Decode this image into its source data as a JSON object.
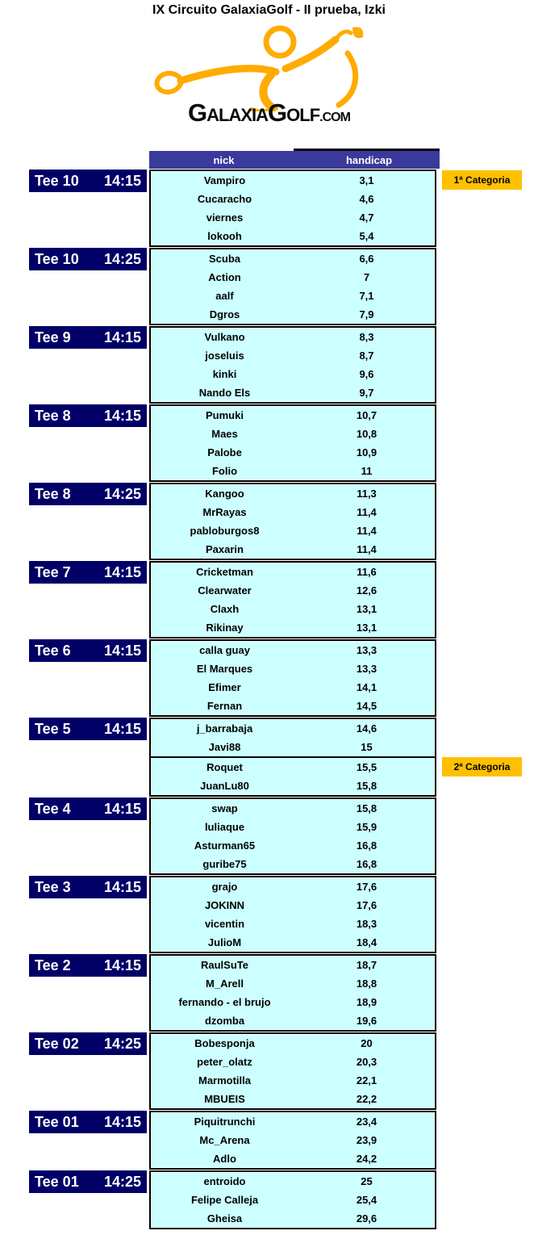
{
  "page": {
    "title": "IX Circuito GalaxiaGolf - II prueba, Izki"
  },
  "logo": {
    "icon": "golfer-swing-icon",
    "g1": "G",
    "rest1": "ALAXIA",
    "g2": "G",
    "rest2": "OLF",
    "com": ".COM"
  },
  "colors": {
    "header_bg": "#3A3A9C",
    "header_text": "#FFFFFF",
    "tee_bg": "#000066",
    "cell_bg": "#CCFFFF",
    "cell_text": "#000000",
    "category_bg": "#FFC000",
    "logo_orange": "#FFAB00",
    "border": "#000000"
  },
  "table": {
    "headers": {
      "nick": "nick",
      "handicap": "handicap"
    },
    "groups": [
      {
        "tee": "Tee 10",
        "time": "14:15",
        "category": {
          "text": "1ª Categoria",
          "row": 0
        },
        "players": [
          {
            "nick": "Vampiro",
            "handicap": "3,1"
          },
          {
            "nick": "Cucaracho",
            "handicap": "4,6"
          },
          {
            "nick": "viernes",
            "handicap": "4,7"
          },
          {
            "nick": "lokooh",
            "handicap": "5,4"
          }
        ]
      },
      {
        "tee": "Tee 10",
        "time": "14:25",
        "players": [
          {
            "nick": "Scuba",
            "handicap": "6,6"
          },
          {
            "nick": "Action",
            "handicap": "7"
          },
          {
            "nick": "aalf",
            "handicap": "7,1"
          },
          {
            "nick": "Dgros",
            "handicap": "7,9"
          }
        ]
      },
      {
        "tee": "Tee 9",
        "time": "14:15",
        "players": [
          {
            "nick": "Vulkano",
            "handicap": "8,3"
          },
          {
            "nick": "joseluis",
            "handicap": "8,7"
          },
          {
            "nick": "kinki",
            "handicap": "9,6"
          },
          {
            "nick": "Nando Els",
            "handicap": "9,7"
          }
        ]
      },
      {
        "tee": "Tee 8",
        "time": "14:15",
        "players": [
          {
            "nick": "Pumuki",
            "handicap": "10,7"
          },
          {
            "nick": "Maes",
            "handicap": "10,8"
          },
          {
            "nick": "Palobe",
            "handicap": "10,9"
          },
          {
            "nick": "Folio",
            "handicap": "11"
          }
        ]
      },
      {
        "tee": "Tee 8",
        "time": "14:25",
        "players": [
          {
            "nick": "Kangoo",
            "handicap": "11,3"
          },
          {
            "nick": "MrRayas",
            "handicap": "11,4"
          },
          {
            "nick": "pabloburgos8",
            "handicap": "11,4"
          },
          {
            "nick": "Paxarin",
            "handicap": "11,4"
          }
        ]
      },
      {
        "tee": "Tee 7",
        "time": "14:15",
        "players": [
          {
            "nick": "Cricketman",
            "handicap": "11,6"
          },
          {
            "nick": "Clearwater",
            "handicap": "12,6"
          },
          {
            "nick": "Claxh",
            "handicap": "13,1"
          },
          {
            "nick": "Rikinay",
            "handicap": "13,1"
          }
        ]
      },
      {
        "tee": "Tee 6",
        "time": "14:15",
        "players": [
          {
            "nick": "calla guay",
            "handicap": "13,3"
          },
          {
            "nick": "El Marques",
            "handicap": "13,3"
          },
          {
            "nick": "Efimer",
            "handicap": "14,1"
          },
          {
            "nick": "Fernan",
            "handicap": "14,5"
          }
        ]
      },
      {
        "tee": "Tee 5",
        "time": "14:15",
        "divider_before_row": 2,
        "category": {
          "text": "2ª Categoria",
          "row": 2
        },
        "players": [
          {
            "nick": "j_barrabaja",
            "handicap": "14,6"
          },
          {
            "nick": "Javi88",
            "handicap": "15"
          },
          {
            "nick": "Roquet",
            "handicap": "15,5"
          },
          {
            "nick": "JuanLu80",
            "handicap": "15,8"
          }
        ]
      },
      {
        "tee": "Tee 4",
        "time": "14:15",
        "players": [
          {
            "nick": "swap",
            "handicap": "15,8"
          },
          {
            "nick": "luliaque",
            "handicap": "15,9"
          },
          {
            "nick": "Asturman65",
            "handicap": "16,8"
          },
          {
            "nick": "guribe75",
            "handicap": "16,8"
          }
        ]
      },
      {
        "tee": "Tee 3",
        "time": "14:15",
        "players": [
          {
            "nick": "grajo",
            "handicap": "17,6"
          },
          {
            "nick": "JOKINN",
            "handicap": "17,6"
          },
          {
            "nick": "vicentin",
            "handicap": "18,3"
          },
          {
            "nick": "JulioM",
            "handicap": "18,4"
          }
        ]
      },
      {
        "tee": "Tee 2",
        "time": "14:15",
        "players": [
          {
            "nick": "RaulSuTe",
            "handicap": "18,7"
          },
          {
            "nick": "M_Arell",
            "handicap": "18,8"
          },
          {
            "nick": "fernando - el brujo",
            "handicap": "18,9"
          },
          {
            "nick": "dzomba",
            "handicap": "19,6"
          }
        ]
      },
      {
        "tee": "Tee 02",
        "time": "14:25",
        "players": [
          {
            "nick": "Bobesponja",
            "handicap": "20"
          },
          {
            "nick": "peter_olatz",
            "handicap": "20,3"
          },
          {
            "nick": "Marmotilla",
            "handicap": "22,1"
          },
          {
            "nick": "MBUEIS",
            "handicap": "22,2"
          }
        ]
      },
      {
        "tee": "Tee 01",
        "time": "14:15",
        "players": [
          {
            "nick": "Piquitrunchi",
            "handicap": "23,4"
          },
          {
            "nick": "Mc_Arena",
            "handicap": "23,9"
          },
          {
            "nick": "Adlo",
            "handicap": "24,2"
          }
        ]
      },
      {
        "tee": "Tee 01",
        "time": "14:25",
        "players": [
          {
            "nick": "entroido",
            "handicap": "25"
          },
          {
            "nick": "Felipe Calleja",
            "handicap": "25,4"
          },
          {
            "nick": "Gheisa",
            "handicap": "29,6"
          }
        ]
      }
    ]
  }
}
